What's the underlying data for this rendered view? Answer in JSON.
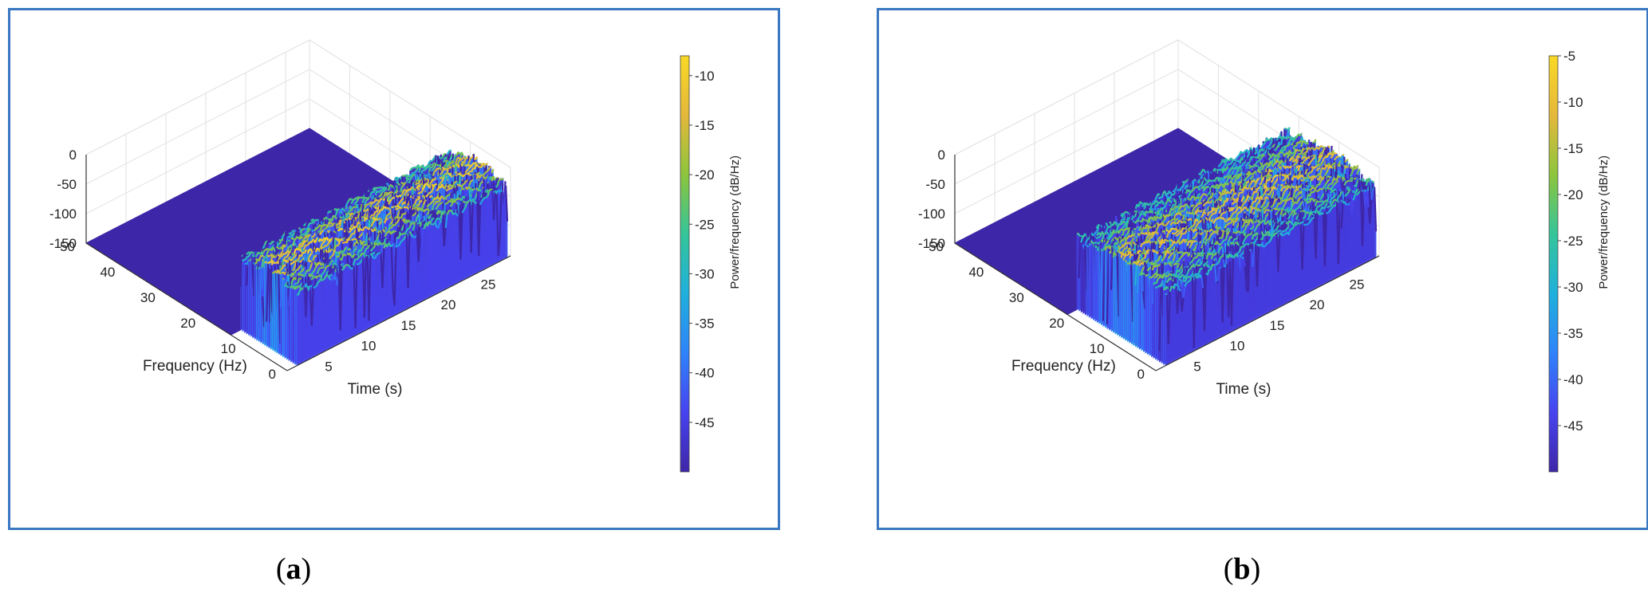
{
  "figure": {
    "panels": [
      {
        "id": "a",
        "caption_letter": "a"
      },
      {
        "id": "b",
        "caption_letter": "b"
      }
    ]
  },
  "chart_data": [
    {
      "type": "surface3d",
      "panel": "a",
      "xlabel": "Frequency (Hz)",
      "ylabel": "Time (s)",
      "zlabel": "",
      "colorbar_label": "Power/frequency (dB/Hz)",
      "x_ticks": [
        0,
        10,
        20,
        30,
        40,
        50
      ],
      "y_ticks": [
        5,
        10,
        15,
        20,
        25
      ],
      "z_ticks": [
        0,
        -50,
        -100,
        -150
      ],
      "colorbar_ticks": [
        -10,
        -15,
        -20,
        -25,
        -30,
        -35,
        -40,
        -45
      ],
      "xlim": [
        0,
        50
      ],
      "ylim": [
        0,
        28
      ],
      "zlim": [
        -150,
        0
      ],
      "clim": [
        -50,
        -8
      ],
      "active_frequency_range_hz": [
        0,
        14
      ],
      "colormap": [
        "#3e26a8",
        "#4743f0",
        "#2f83fa",
        "#1fb0dc",
        "#34c59a",
        "#8cc53c",
        "#e4b83b",
        "#f9d825"
      ]
    },
    {
      "type": "surface3d",
      "panel": "b",
      "xlabel": "Frequency (Hz)",
      "ylabel": "Time (s)",
      "zlabel": "",
      "colorbar_label": "Power/frequency (dB/Hz)",
      "x_ticks": [
        0,
        10,
        20,
        30,
        40,
        50
      ],
      "y_ticks": [
        5,
        10,
        15,
        20,
        25
      ],
      "z_ticks": [
        0,
        -50,
        -100,
        -150
      ],
      "colorbar_ticks": [
        -5,
        -10,
        -15,
        -20,
        -25,
        -30,
        -35,
        -40,
        -45
      ],
      "xlim": [
        0,
        50
      ],
      "ylim": [
        0,
        28
      ],
      "zlim": [
        -150,
        0
      ],
      "clim": [
        -50,
        -5
      ],
      "active_frequency_range_hz": [
        0,
        22
      ],
      "colormap": [
        "#3e26a8",
        "#4743f0",
        "#2f83fa",
        "#1fb0dc",
        "#34c59a",
        "#8cc53c",
        "#e4b83b",
        "#f9d825"
      ]
    }
  ]
}
